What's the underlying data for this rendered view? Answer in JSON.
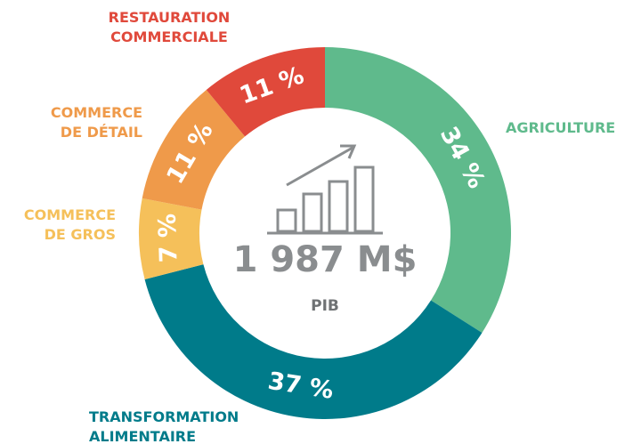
{
  "chart_data": {
    "type": "donut",
    "categories": [
      "AGRICULTURE",
      "TRANSFORMATION\nALIMENTAIRE",
      "COMMERCE\nDE GROS",
      "COMMERCE\nDE DÉTAIL",
      "RESTAURATION\nCOMMERCIALE"
    ],
    "values": [
      34,
      37,
      7,
      11,
      11
    ],
    "value_labels": [
      "34 %",
      "37 %",
      "7 %",
      "11 %",
      "11 %"
    ],
    "colors": [
      "#5fba8c",
      "#007b8a",
      "#f5c05a",
      "#ef9a4a",
      "#e0493b"
    ],
    "center_label": "1 987 M$",
    "center_sublabel": "PIB"
  }
}
